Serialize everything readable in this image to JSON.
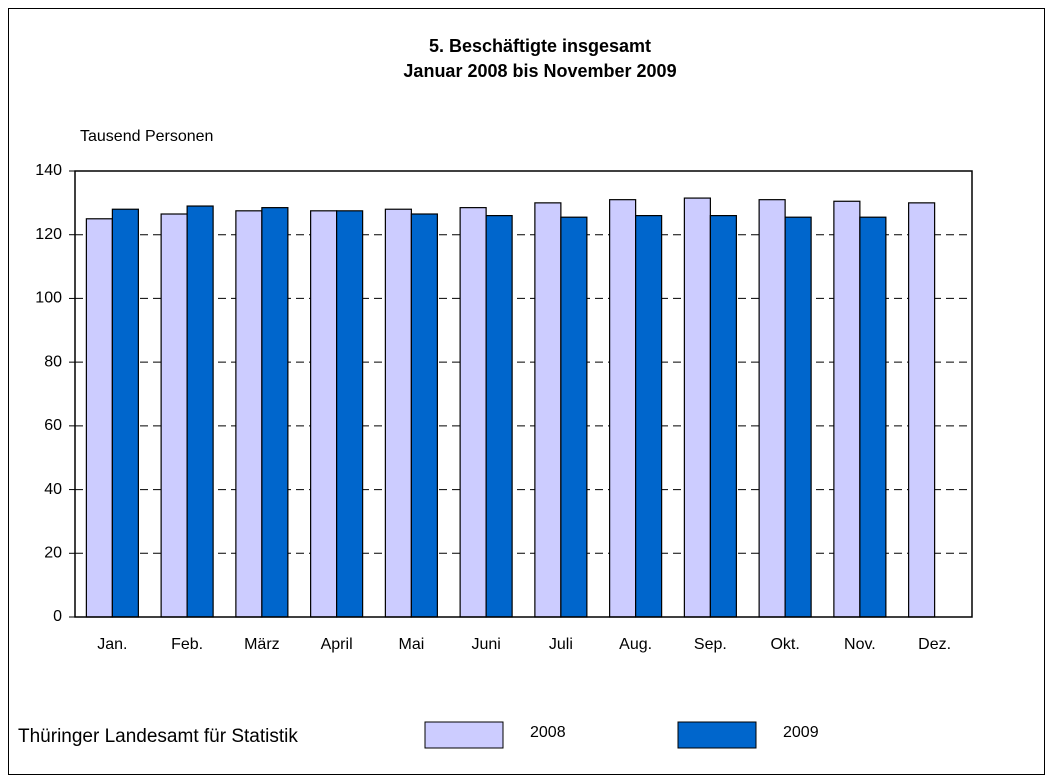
{
  "chart_data": {
    "type": "bar",
    "title": "5. Beschäftigte insgesamt",
    "subtitle": "Januar 2008 bis November 2009",
    "y_label": "Tausend Personen",
    "source": "Thüringer Landesamt für Statistik",
    "categories": [
      "Jan.",
      "Feb.",
      "März",
      "April",
      "Mai",
      "Juni",
      "Juli",
      "Aug.",
      "Sep.",
      "Okt.",
      "Nov.",
      "Dez."
    ],
    "series": [
      {
        "name": "2008",
        "color": "#ccccff",
        "values": [
          125,
          126.5,
          127.5,
          127.5,
          128,
          128.5,
          130,
          131,
          131.5,
          131,
          130.5,
          130
        ]
      },
      {
        "name": "2009",
        "color": "#0066cc",
        "values": [
          128,
          129,
          128.5,
          127.5,
          126.5,
          126,
          125.5,
          126,
          126,
          125.5,
          125.5,
          null
        ]
      }
    ],
    "ylim": [
      0,
      140
    ],
    "yticks": [
      0,
      20,
      40,
      60,
      80,
      100,
      120,
      140
    ],
    "grid": true
  }
}
